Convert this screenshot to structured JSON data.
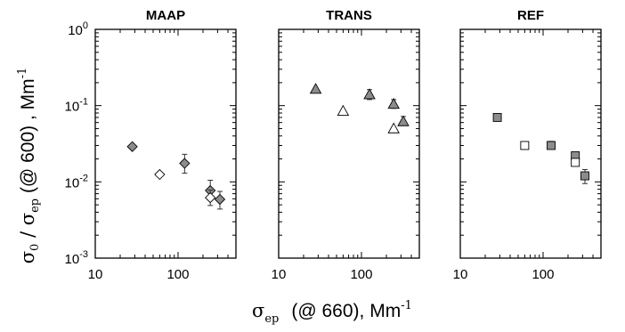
{
  "chart_data": {
    "type": "scatter",
    "scale": {
      "x": "log",
      "y": "log"
    },
    "xlim": [
      10,
      500
    ],
    "ylim": [
      0.001,
      1
    ],
    "x_tick_labels": [
      "10",
      "100"
    ],
    "y_tick_labels": [
      {
        "base": "10",
        "exp": "0"
      },
      {
        "base": "10",
        "exp": "-1"
      },
      {
        "base": "10",
        "exp": "-2"
      },
      {
        "base": "10",
        "exp": "-3"
      }
    ],
    "ylabel": {
      "sym": "σ",
      "sub1": "0",
      "mid": " / σ",
      "sub2": "ep",
      "tail": "  (@ 600) ,  Mm",
      "sup": "-1"
    },
    "xlabel": {
      "sym": "σ",
      "sub": "ep",
      "tail": "(@ 660), Mm",
      "sup": "-1"
    },
    "panels": [
      {
        "title": "MAAP",
        "marker": "diamond",
        "points": [
          {
            "x": 28,
            "y": 0.029,
            "fill": "#8c8c8c"
          },
          {
            "x": 60,
            "y": 0.0125,
            "fill": "#ffffff"
          },
          {
            "x": 120,
            "y": 0.0175,
            "fill": "#8c8c8c",
            "err": [
              0.013,
              0.023
            ]
          },
          {
            "x": 245,
            "y": 0.0077,
            "fill": "#8c8c8c",
            "err": [
              0.0058,
              0.0105
            ]
          },
          {
            "x": 245,
            "y": 0.0062,
            "fill": "#ffffff",
            "err": [
              0.0049,
              0.0078
            ]
          },
          {
            "x": 320,
            "y": 0.0059,
            "fill": "#8c8c8c",
            "err": [
              0.0044,
              0.0075
            ]
          }
        ]
      },
      {
        "title": "TRANS",
        "marker": "triangle",
        "points": [
          {
            "x": 28,
            "y": 0.165,
            "fill": "#8c8c8c"
          },
          {
            "x": 60,
            "y": 0.085,
            "fill": "#ffffff"
          },
          {
            "x": 125,
            "y": 0.14,
            "fill": "#8c8c8c",
            "err": [
              0.12,
              0.162
            ]
          },
          {
            "x": 245,
            "y": 0.105,
            "fill": "#8c8c8c",
            "err": [
              0.092,
              0.12
            ]
          },
          {
            "x": 245,
            "y": 0.05,
            "fill": "#ffffff"
          },
          {
            "x": 320,
            "y": 0.062,
            "fill": "#8c8c8c",
            "err": [
              0.055,
              0.072
            ]
          }
        ]
      },
      {
        "title": "REF",
        "marker": "square",
        "points": [
          {
            "x": 28,
            "y": 0.07,
            "fill": "#8c8c8c"
          },
          {
            "x": 60,
            "y": 0.03,
            "fill": "#ffffff"
          },
          {
            "x": 125,
            "y": 0.03,
            "fill": "#8c8c8c",
            "err": [
              0.027,
              0.034
            ]
          },
          {
            "x": 245,
            "y": 0.022,
            "fill": "#8c8c8c"
          },
          {
            "x": 245,
            "y": 0.018,
            "fill": "#ffffff"
          },
          {
            "x": 320,
            "y": 0.012,
            "fill": "#8c8c8c",
            "err": [
              0.0095,
              0.0145
            ]
          }
        ]
      }
    ]
  }
}
